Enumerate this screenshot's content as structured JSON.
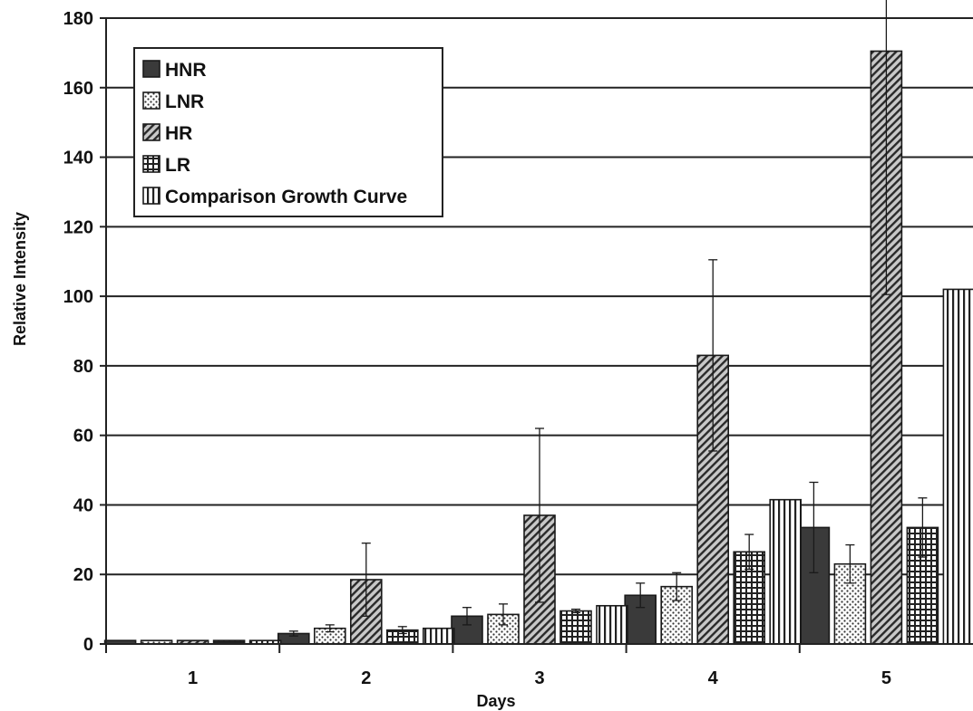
{
  "chart_data": {
    "type": "bar",
    "title": "",
    "xlabel": "Days",
    "ylabel": "Relative Intensity",
    "categories": [
      "1",
      "2",
      "3",
      "4",
      "5"
    ],
    "ylim": [
      0,
      180
    ],
    "yticks": [
      0,
      20,
      40,
      60,
      80,
      100,
      120,
      140,
      160,
      180
    ],
    "grid": true,
    "legend_position": "top-left",
    "series": [
      {
        "name": "HNR",
        "pattern": "solid-dark",
        "values": [
          1,
          3,
          8,
          14,
          33.5
        ],
        "errors": [
          0,
          0.7,
          2.5,
          3.5,
          13
        ]
      },
      {
        "name": "LNR",
        "pattern": "dots",
        "values": [
          1,
          4.5,
          8.5,
          16.5,
          23
        ],
        "errors": [
          0,
          1,
          3,
          4,
          5.5
        ]
      },
      {
        "name": "HR",
        "pattern": "diagonal",
        "values": [
          1,
          18.5,
          37,
          83,
          170.5
        ],
        "errors": [
          0,
          10.5,
          25,
          27.5,
          70
        ]
      },
      {
        "name": "LR",
        "pattern": "grid",
        "values": [
          1,
          4,
          9.5,
          26.5,
          33.5
        ],
        "errors": [
          0,
          1,
          0.5,
          5,
          8.5
        ]
      },
      {
        "name": "Comparison Growth Curve",
        "pattern": "vertical",
        "values": [
          1,
          4.5,
          11,
          41.5,
          102
        ],
        "errors": [
          0,
          0,
          0,
          0,
          0
        ]
      }
    ]
  }
}
